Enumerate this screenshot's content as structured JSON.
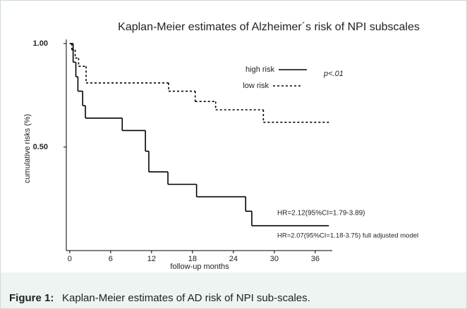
{
  "chart_data": {
    "type": "step",
    "title": "Kaplan-Meier estimates of Alzheimer´s risk of NPI subscales",
    "xlabel": "follow-up months",
    "ylabel": "cumulative risks (%)",
    "xlim": [
      -0.5,
      38.5
    ],
    "ylim": [
      0,
      1.02
    ],
    "xticks": [
      0,
      6,
      12,
      18,
      24,
      30,
      36
    ],
    "yticks": [
      {
        "value": 1.0,
        "label": "1.00"
      },
      {
        "value": 0.5,
        "label": "0.50"
      }
    ],
    "series": [
      {
        "name": "high risk",
        "color": "#000000",
        "dash": "none",
        "x": [
          0,
          0.5,
          0.9,
          1.2,
          1.9,
          2.3,
          7.7,
          11.1,
          11.6,
          14.4,
          18.6,
          25.8,
          26.7,
          38
        ],
        "values": [
          1.0,
          0.91,
          0.84,
          0.77,
          0.7,
          0.64,
          0.58,
          0.48,
          0.38,
          0.32,
          0.26,
          0.19,
          0.12,
          0.12
        ]
      },
      {
        "name": "low risk",
        "color": "#000000",
        "dash": "3,3",
        "x": [
          0,
          0.3,
          0.8,
          1.3,
          2.4,
          14.5,
          18.4,
          21.4,
          28.4,
          38
        ],
        "values": [
          1.0,
          0.97,
          0.93,
          0.89,
          0.81,
          0.77,
          0.72,
          0.68,
          0.62,
          0.62
        ]
      }
    ],
    "annotations": [
      "p<.01",
      "HR=2.12(95%CI=1.79-3.89)",
      "HR=2.07(95%CI=1.18-3.75) full adjusted model"
    ]
  },
  "caption": {
    "label": "Figure 1:",
    "text": "Kaplan-Meier estimates of AD risk of NPI sub-scales."
  }
}
